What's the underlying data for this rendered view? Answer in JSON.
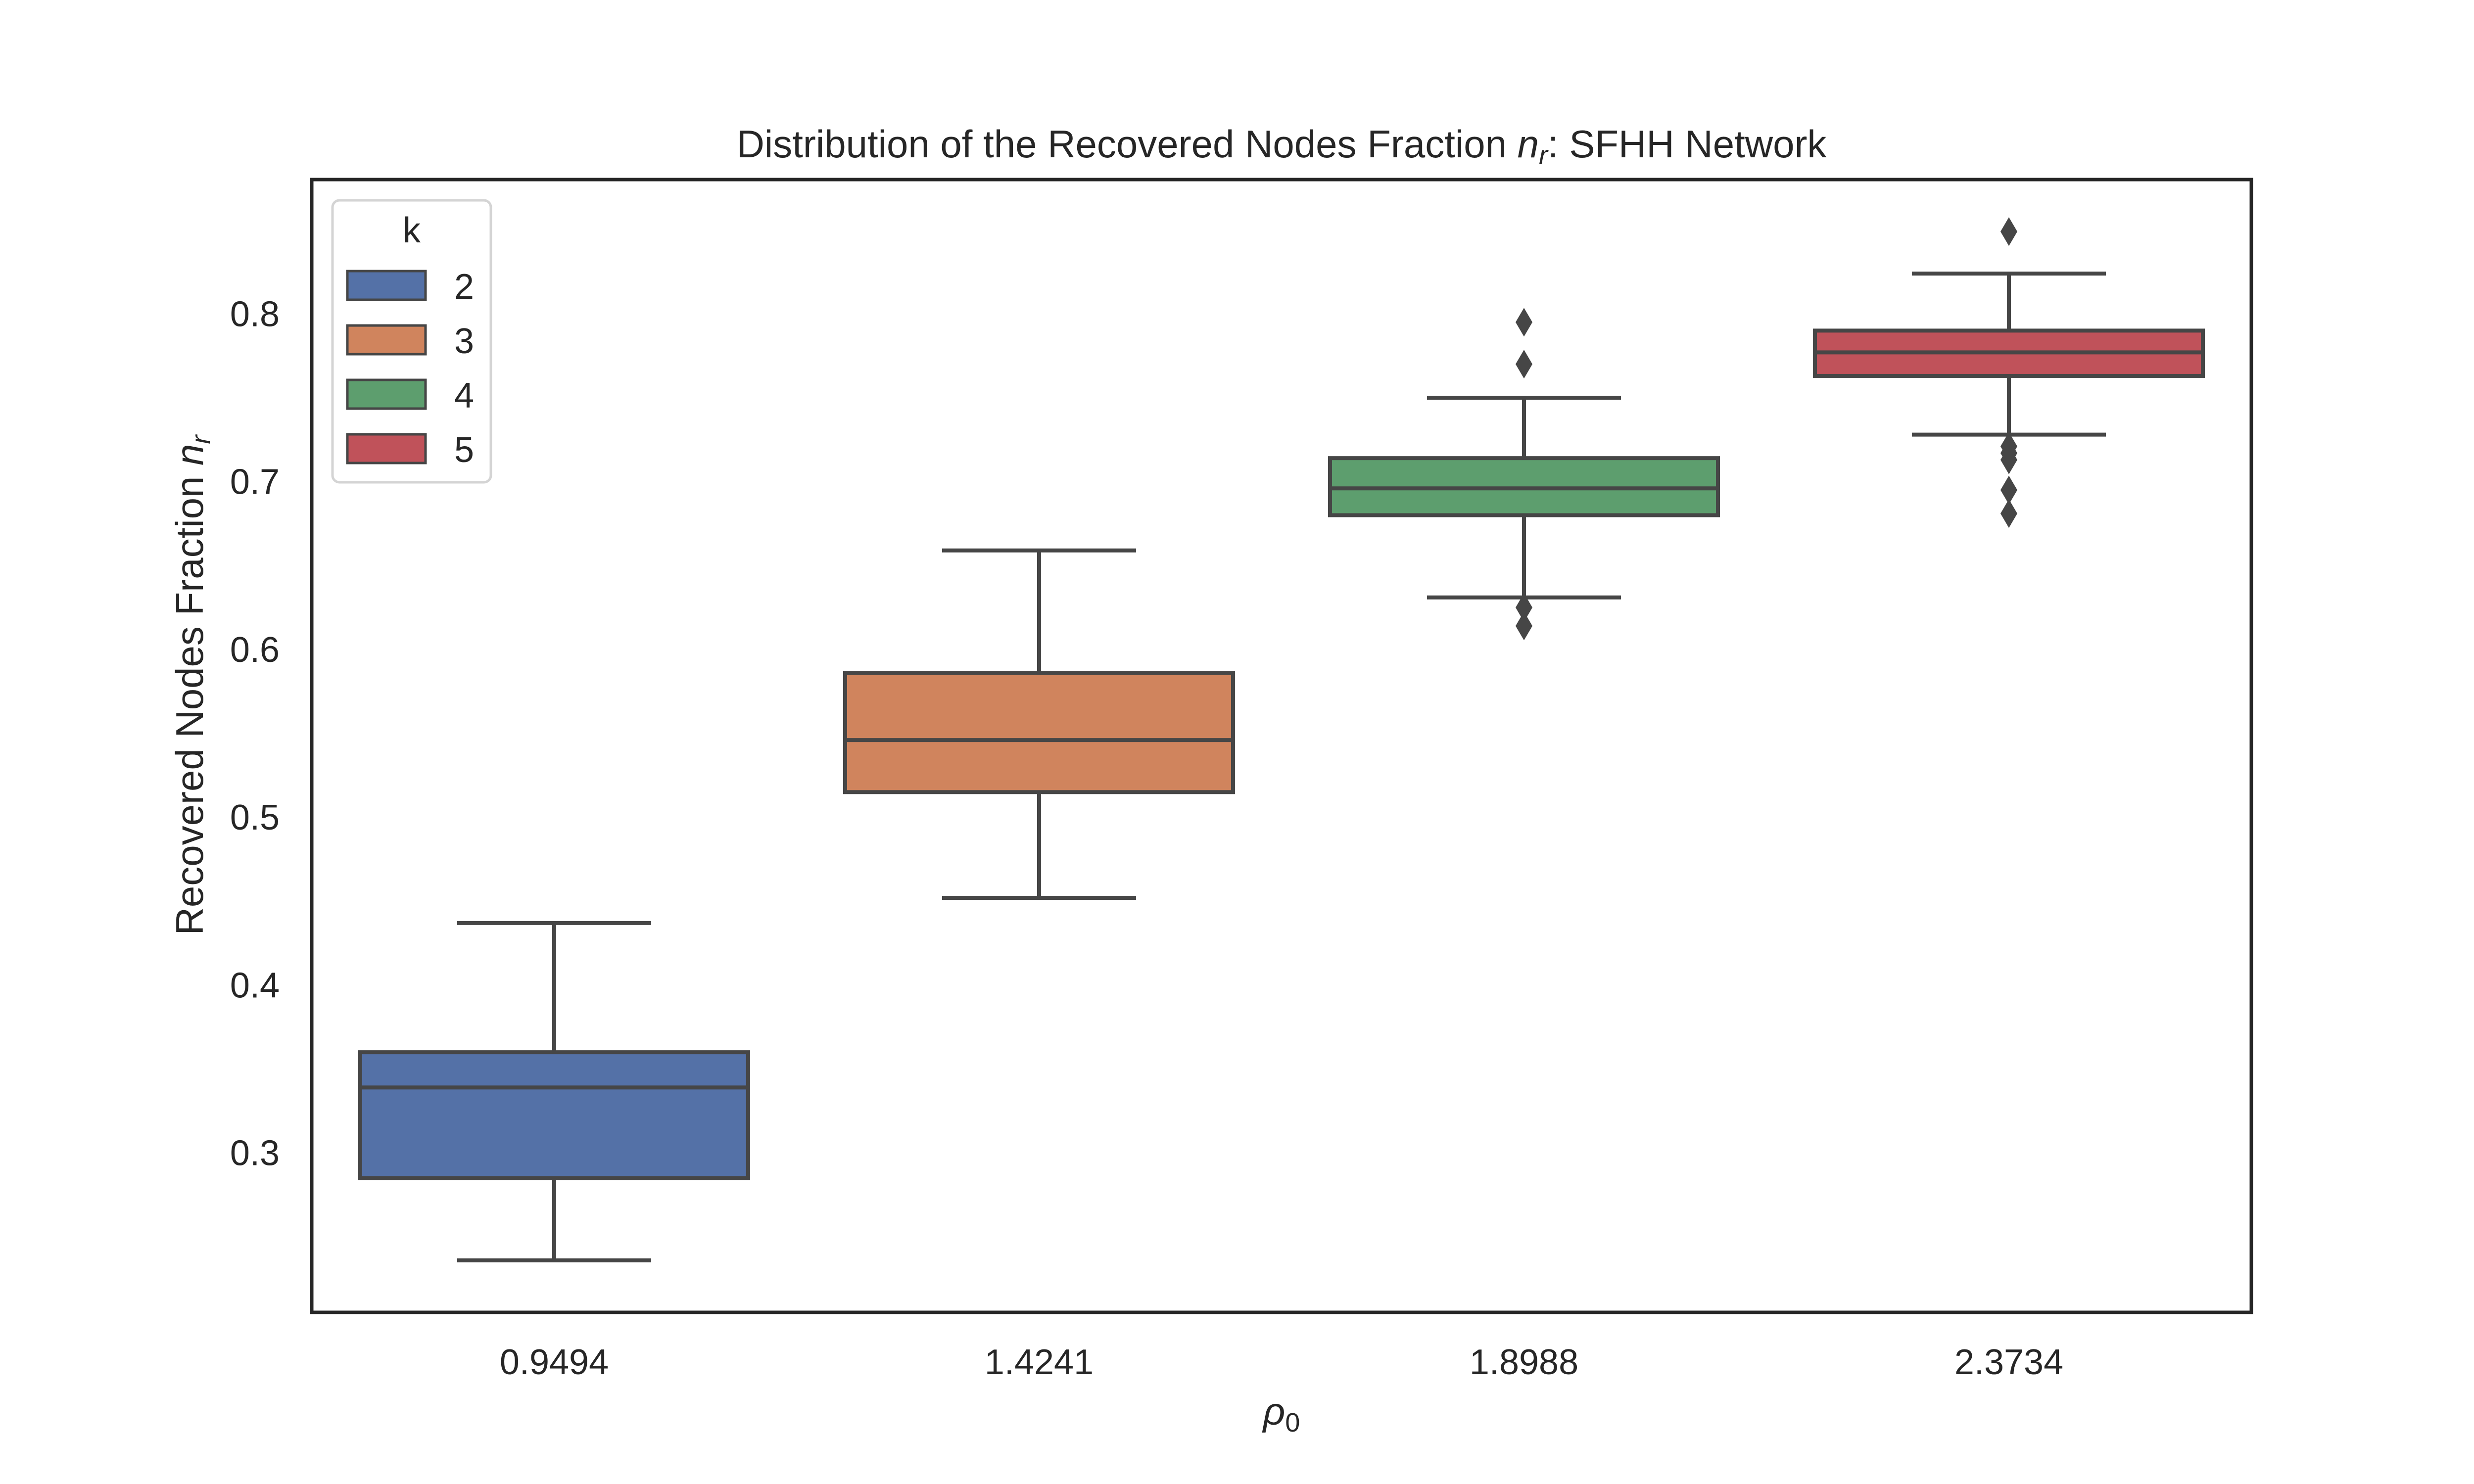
{
  "chart_data": {
    "type": "box",
    "title": {
      "prefix": "Distribution of the Recovered Nodes Fraction ",
      "symbol": "n",
      "subscript": "r",
      "suffix": ": SFHH Network"
    },
    "xlabel": {
      "symbol": "ρ",
      "subscript": "0"
    },
    "ylabel": {
      "prefix": "Recovered Nodes Fraction ",
      "symbol": "n",
      "subscript": "r"
    },
    "categories": [
      "0.9494",
      "1.4241",
      "1.8988",
      "2.3734"
    ],
    "ylim": [
      0.205,
      0.88
    ],
    "yticks": [
      "0.3",
      "0.4",
      "0.5",
      "0.6",
      "0.7",
      "0.8"
    ],
    "grid": false,
    "legend": {
      "title": "k",
      "placement": "top-left",
      "entries": [
        "2",
        "3",
        "4",
        "5"
      ]
    },
    "series": [
      {
        "name": "2",
        "color": "#5471a7",
        "whisker_low": 0.236,
        "q1": 0.285,
        "median": 0.339,
        "q3": 0.36,
        "whisker_high": 0.437,
        "outliers": []
      },
      {
        "name": "3",
        "color": "#d0845d",
        "whisker_low": 0.452,
        "q1": 0.515,
        "median": 0.546,
        "q3": 0.586,
        "whisker_high": 0.659,
        "outliers": []
      },
      {
        "name": "4",
        "color": "#5d9e6e",
        "whisker_low": 0.631,
        "q1": 0.68,
        "median": 0.696,
        "q3": 0.714,
        "whisker_high": 0.75,
        "outliers": [
          0.614,
          0.625,
          0.77,
          0.795
        ]
      },
      {
        "name": "5",
        "color": "#c0525a",
        "whisker_low": 0.728,
        "q1": 0.763,
        "median": 0.777,
        "q3": 0.79,
        "whisker_high": 0.824,
        "outliers": [
          0.681,
          0.695,
          0.713,
          0.717,
          0.721,
          0.849
        ]
      }
    ]
  }
}
